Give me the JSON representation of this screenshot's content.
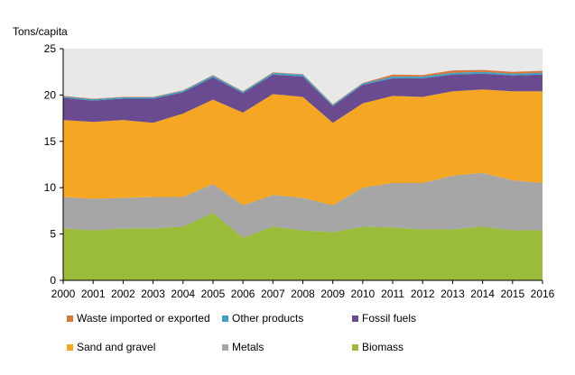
{
  "chart_data": {
    "type": "area",
    "stacked": true,
    "ylabel": "Tons/capita",
    "xlabel": "",
    "ylim": [
      0,
      25
    ],
    "yticks": [
      0,
      5,
      10,
      15,
      20,
      25
    ],
    "grid": false,
    "plot_background": "#e8e8e8",
    "legend_position": "bottom",
    "x": [
      "2000",
      "2001",
      "2002",
      "2003",
      "2004",
      "2005",
      "2006",
      "2007",
      "2008",
      "2009",
      "2010",
      "2011",
      "2012",
      "2013",
      "2014",
      "2015",
      "2016"
    ],
    "series": [
      {
        "name": "Biomass",
        "color": "#9bbb3b",
        "values": [
          5.6,
          5.4,
          5.6,
          5.6,
          5.8,
          7.3,
          4.6,
          5.8,
          5.4,
          5.2,
          5.8,
          5.7,
          5.5,
          5.5,
          5.8,
          5.4,
          5.4
        ]
      },
      {
        "name": "Metals",
        "color": "#a6a6a6",
        "values": [
          3.4,
          3.4,
          3.3,
          3.4,
          3.2,
          3.1,
          3.5,
          3.4,
          3.5,
          2.9,
          4.2,
          4.8,
          5.0,
          5.8,
          5.8,
          5.4,
          5.1
        ]
      },
      {
        "name": "Sand and gravel",
        "color": "#f5a623",
        "values": [
          8.3,
          8.3,
          8.4,
          8.0,
          9.0,
          9.1,
          10.0,
          10.9,
          10.9,
          8.9,
          9.1,
          9.4,
          9.3,
          9.1,
          9.0,
          9.6,
          9.9
        ]
      },
      {
        "name": "Fossil fuels",
        "color": "#6a4b8f",
        "values": [
          2.4,
          2.3,
          2.3,
          2.6,
          2.3,
          2.4,
          2.1,
          2.1,
          2.2,
          1.8,
          2.0,
          1.9,
          2.0,
          1.8,
          1.7,
          1.7,
          1.8
        ]
      },
      {
        "name": "Other products",
        "color": "#3fa0c4",
        "values": [
          0.15,
          0.15,
          0.15,
          0.15,
          0.15,
          0.2,
          0.15,
          0.2,
          0.2,
          0.15,
          0.15,
          0.2,
          0.2,
          0.2,
          0.2,
          0.2,
          0.2
        ]
      },
      {
        "name": "Waste imported or exported",
        "color": "#d9773a",
        "values": [
          0.05,
          0.05,
          0.05,
          0.05,
          0.05,
          0.05,
          0.05,
          0.05,
          0.05,
          0.05,
          0.05,
          0.2,
          0.15,
          0.25,
          0.2,
          0.2,
          0.2
        ]
      }
    ],
    "legend_order": [
      "Waste imported or exported",
      "Other products",
      "Fossil fuels",
      "Sand and gravel",
      "Metals",
      "Biomass"
    ]
  }
}
